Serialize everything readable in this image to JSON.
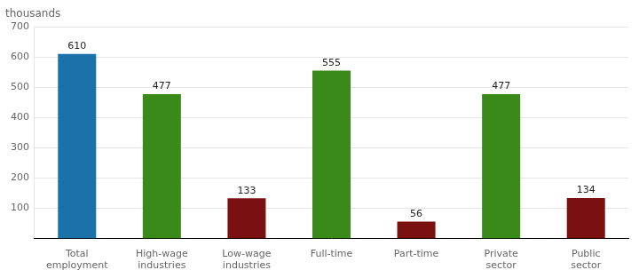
{
  "chart_data": {
    "type": "bar",
    "categories": [
      "Total\nemployment",
      "High-wage\nindustries",
      "Low-wage\nindustries",
      "Full-time",
      "Part-time",
      "Private\nsector",
      "Public\nsector"
    ],
    "values": [
      610,
      477,
      133,
      555,
      56,
      477,
      134
    ],
    "colors": [
      "#1a72a8",
      "#3a8a1a",
      "#7a1010",
      "#3a8a1a",
      "#7a1010",
      "#3a8a1a",
      "#7a1010"
    ],
    "ylabel": "thousands",
    "ylim": [
      0,
      700
    ],
    "yticks": [
      100,
      200,
      300,
      400,
      500,
      600,
      700
    ],
    "grid": true,
    "data_labels": true
  }
}
